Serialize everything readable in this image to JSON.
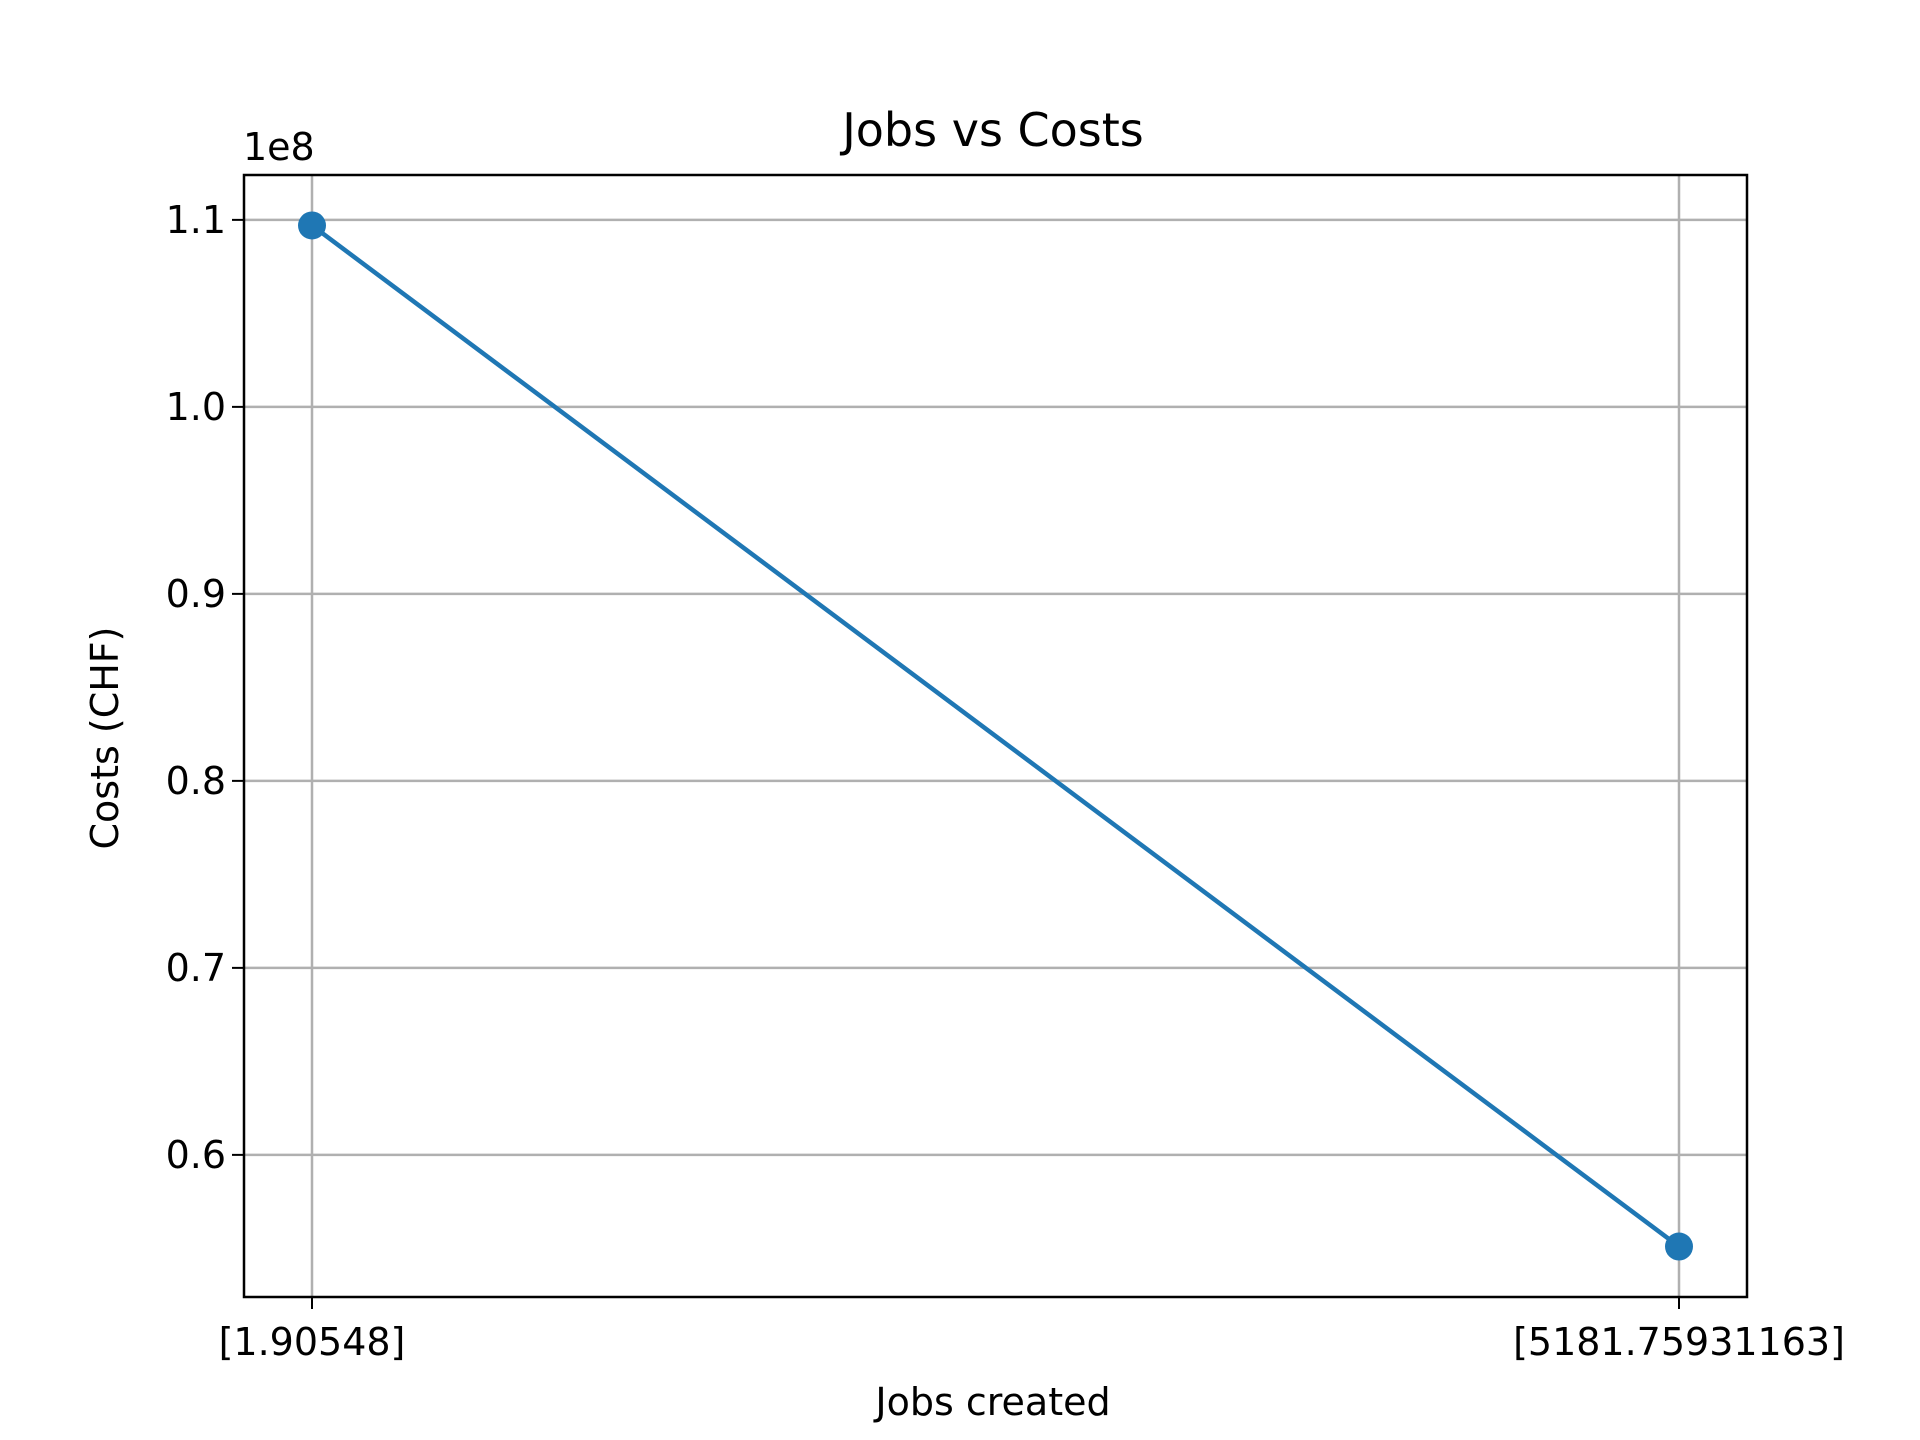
{
  "chart_data": {
    "type": "line",
    "title": "Jobs vs Costs",
    "xlabel": "Jobs created",
    "ylabel": "Costs (CHF)",
    "y_offset_label": "1e8",
    "categories": [
      "[1.90548]",
      "[5181.75931163]"
    ],
    "series": [
      {
        "values": [
          109700000,
          55100000
        ],
        "color": "#1f77b4",
        "marker": "circle"
      }
    ],
    "ylim": [
      52400000,
      112400000
    ],
    "y_ticks": [
      0.6,
      0.7,
      0.8,
      0.9,
      1.0,
      1.1
    ],
    "y_tick_labels": [
      "0.6",
      "0.7",
      "0.8",
      "0.9",
      "1.0",
      "1.1"
    ],
    "y_tick_scale": 100000000,
    "grid": true
  }
}
